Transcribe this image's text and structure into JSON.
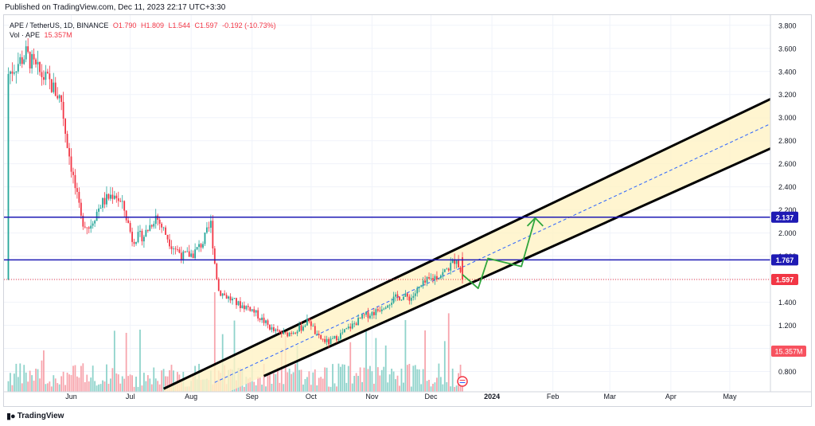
{
  "header": {
    "published": "Published on TradingView.com, Dec 11, 2023 22:17 UTC+3:30"
  },
  "legend": {
    "symbol": "APE / TetherUS, 1D, BINANCE",
    "open": "O1.790",
    "high": "H1.809",
    "low": "L1.544",
    "close": "C1.597",
    "change": "-0.192 (-10.73%)",
    "vol_label": "Vol · APE",
    "vol_value": "15.357M"
  },
  "footer": {
    "brand": "TradingView"
  },
  "colors": {
    "up": "#26a69a",
    "down": "#f23645",
    "level_line": "#1e1ab4",
    "channel": "#000000",
    "channel_fill": "#fff3c4",
    "projection": "#2fa63c",
    "midline": "#2962ff"
  },
  "chart_data": {
    "type": "candlestick",
    "title": "APE / TetherUS, 1D, BINANCE",
    "ylim": [
      0.7,
      3.84
    ],
    "y_ticks": [
      "0.800",
      "1.000",
      "1.200",
      "1.400",
      "1.600",
      "1.800",
      "2.000",
      "2.200",
      "2.400",
      "2.600",
      "2.800",
      "3.000",
      "3.200",
      "3.400",
      "3.600",
      "3.800"
    ],
    "x_labels": [
      "Jun",
      "Jul",
      "Aug",
      "Sep",
      "Oct",
      "Nov",
      "Dec",
      "2024",
      "Feb",
      "Mar",
      "Apr",
      "May"
    ],
    "x_label_days": [
      33,
      63,
      94,
      125,
      155,
      186,
      216,
      247,
      278,
      307,
      338,
      368
    ],
    "last_day": 232,
    "price_series": [
      [
        1,
        3.38
      ],
      [
        10,
        3.55
      ],
      [
        15,
        3.42
      ],
      [
        22,
        3.3
      ],
      [
        28,
        3.15
      ],
      [
        30,
        2.88
      ],
      [
        34,
        2.48
      ],
      [
        38,
        2.12
      ],
      [
        42,
        2.05
      ],
      [
        48,
        2.25
      ],
      [
        55,
        2.35
      ],
      [
        60,
        2.2
      ],
      [
        64,
        1.95
      ],
      [
        70,
        1.98
      ],
      [
        76,
        2.15
      ],
      [
        84,
        1.9
      ],
      [
        90,
        1.8
      ],
      [
        95,
        1.82
      ],
      [
        100,
        1.92
      ],
      [
        104,
        2.08
      ],
      [
        106,
        1.74
      ],
      [
        108,
        1.5
      ],
      [
        112,
        1.45
      ],
      [
        118,
        1.38
      ],
      [
        124,
        1.35
      ],
      [
        130,
        1.25
      ],
      [
        136,
        1.15
      ],
      [
        142,
        1.12
      ],
      [
        150,
        1.18
      ],
      [
        154,
        1.25
      ],
      [
        158,
        1.1
      ],
      [
        164,
        1.05
      ],
      [
        170,
        1.12
      ],
      [
        176,
        1.2
      ],
      [
        182,
        1.28
      ],
      [
        188,
        1.32
      ],
      [
        194,
        1.4
      ],
      [
        200,
        1.45
      ],
      [
        206,
        1.44
      ],
      [
        210,
        1.52
      ],
      [
        214,
        1.58
      ],
      [
        218,
        1.62
      ],
      [
        222,
        1.65
      ],
      [
        226,
        1.72
      ],
      [
        229,
        1.79
      ],
      [
        232,
        1.597
      ]
    ],
    "horizontal_levels": [
      {
        "label": "2.137",
        "value": 2.137
      },
      {
        "label": "1.767",
        "value": 1.767
      }
    ],
    "last_price": {
      "label": "1.597",
      "value": 1.597
    },
    "volume_label": "15.357M",
    "channel": {
      "upper": [
        [
          80,
          0.65
        ],
        [
          391,
          3.18
        ]
      ],
      "lower": [
        [
          131,
          0.76
        ],
        [
          391,
          2.75
        ]
      ],
      "mid": [
        [
          106,
          0.705
        ],
        [
          391,
          2.965
        ]
      ]
    },
    "projection": [
      [
        232,
        1.64
      ],
      [
        240,
        1.52
      ],
      [
        245,
        1.78
      ],
      [
        262,
        1.71
      ],
      [
        269,
        2.13
      ],
      [
        273,
        2.06
      ]
    ]
  }
}
